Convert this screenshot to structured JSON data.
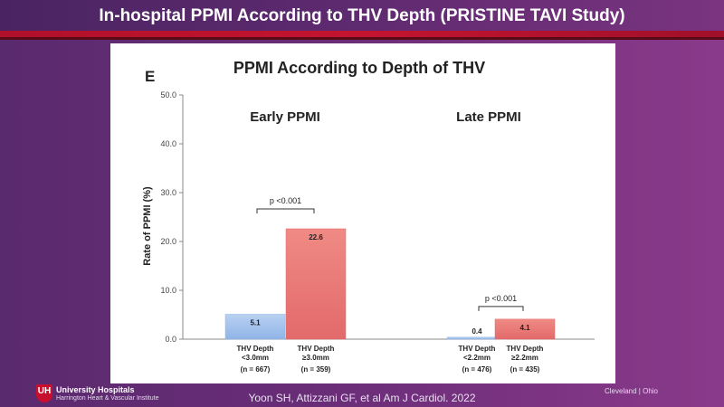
{
  "slide": {
    "title": "In-hospital PPMI According to THV Depth (PRISTINE TAVI Study)",
    "citation": "Yoon SH, Attizzani GF, et al Am J Cardiol. 2022",
    "logo_name": "University Hospitals",
    "logo_sub": "Harrington Heart & Vascular Institute",
    "logo_mark": "UH",
    "city": "Cleveland | Ohio"
  },
  "colors": {
    "blue_bar": "#8fb4e6",
    "red_bar": "#e26a6a",
    "axis": "#888888"
  },
  "chart_data": {
    "type": "bar",
    "panel_letter": "E",
    "title": "PPMI According to Depth of THV",
    "ylabel": "Rate of PPMI (%)",
    "ylim": [
      0,
      50
    ],
    "yticks": [
      "0.0",
      "10.0",
      "20.0",
      "30.0",
      "40.0",
      "50.0"
    ],
    "grid": false,
    "groups": [
      {
        "name": "Early PPMI",
        "p_value": "p <0.001",
        "bars": [
          {
            "value": 5.1,
            "label": "5.1",
            "cat_line1": "THV Depth",
            "cat_line2": "<3.0mm",
            "n": "(n = 667)",
            "color": "blue"
          },
          {
            "value": 22.6,
            "label": "22.6",
            "cat_line1": "THV Depth",
            "cat_line2": "≥3.0mm",
            "n": "(n = 359)",
            "color": "red"
          }
        ]
      },
      {
        "name": "Late PPMI",
        "p_value": "p <0.001",
        "bars": [
          {
            "value": 0.4,
            "label": "0.4",
            "cat_line1": "THV Depth",
            "cat_line2": "<2.2mm",
            "n": "(n = 476)",
            "color": "blue"
          },
          {
            "value": 4.1,
            "label": "4.1",
            "cat_line1": "THV Depth",
            "cat_line2": "≥2.2mm",
            "n": "(n = 435)",
            "color": "red"
          }
        ]
      }
    ]
  }
}
